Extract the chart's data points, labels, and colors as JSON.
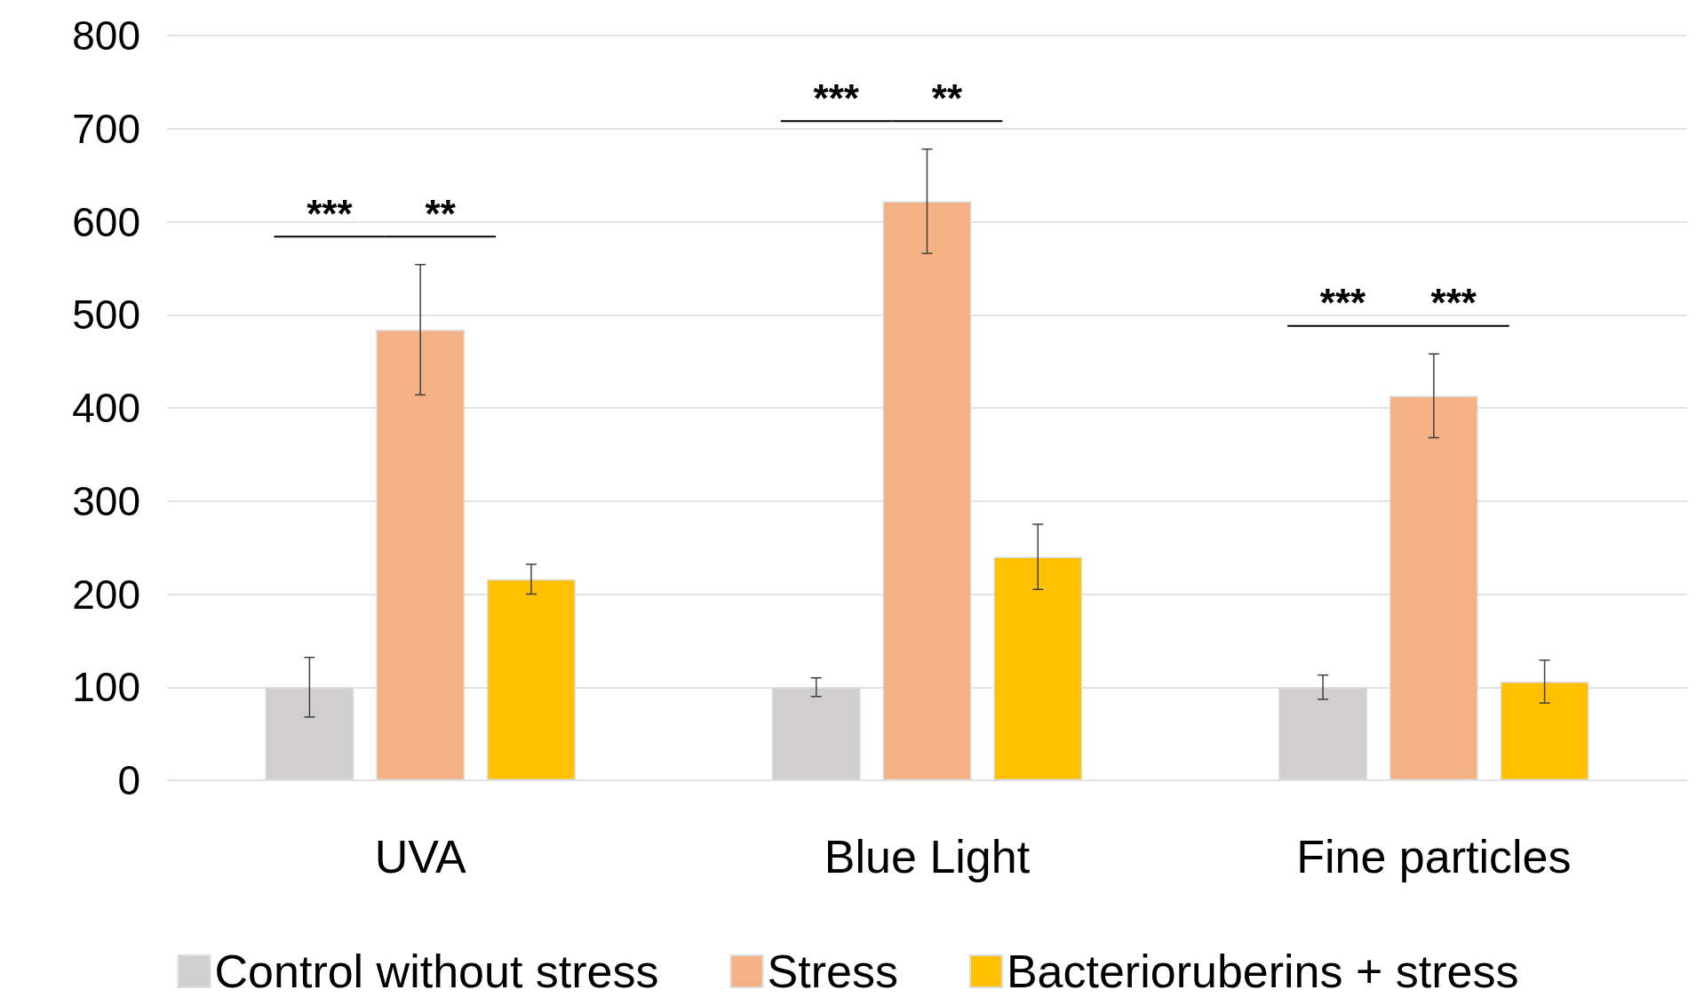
{
  "chart_data": {
    "type": "bar",
    "categories": [
      "UVA",
      "Blue Light",
      "Fine particles"
    ],
    "series": [
      {
        "name": "Control without stress",
        "color": "#d0cece",
        "values": [
          100,
          100,
          100
        ],
        "errors": [
          32,
          10,
          13
        ]
      },
      {
        "name": "Stress",
        "color": "#f4b183",
        "values": [
          484,
          622,
          413
        ],
        "errors": [
          70,
          56,
          45
        ]
      },
      {
        "name": "Bacterioruberins + stress",
        "color": "#ffc000",
        "values": [
          216,
          240,
          106
        ],
        "errors": [
          16,
          35,
          23
        ]
      }
    ],
    "annotations": [
      "***",
      "**",
      "***",
      "**",
      "***",
      "***"
    ],
    "ylim": [
      0,
      800
    ],
    "yticks": [
      0,
      100,
      200,
      300,
      400,
      500,
      600,
      700,
      800
    ],
    "grid": "y",
    "legend": "bottom"
  }
}
